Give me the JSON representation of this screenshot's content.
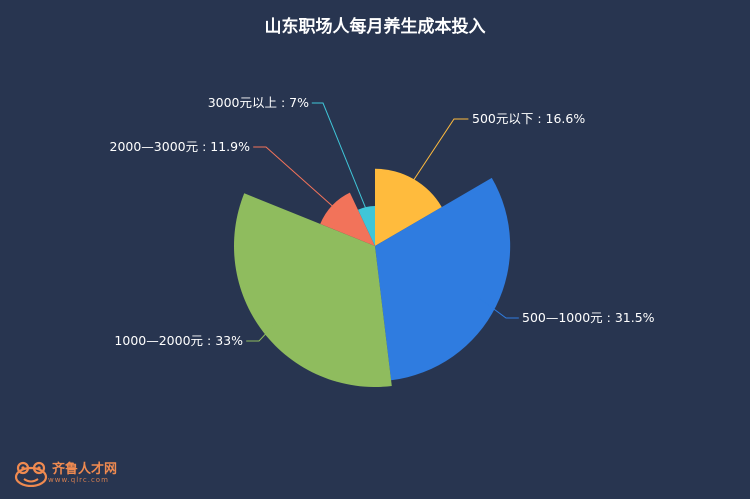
{
  "chart_data": {
    "type": "pie",
    "variant": "rose",
    "title": "山东职场人每月养生成本投入",
    "slices": [
      {
        "name": "500元以下",
        "value": 16.6,
        "label": "500元以下 : 16.6%",
        "color": "#ffbb3d"
      },
      {
        "name": "500—1000元",
        "value": 31.5,
        "label": "500—1000元 : 31.5%",
        "color": "#2f7ce0"
      },
      {
        "name": "1000—2000元",
        "value": 33,
        "label": "1000—2000元 : 33%",
        "color": "#8fbc5e"
      },
      {
        "name": "2000—3000元",
        "value": 11.9,
        "label": "2000—3000元 : 11.9%",
        "color": "#f2735a"
      },
      {
        "name": "3000元以上",
        "value": 7,
        "label": "3000元以上 : 7%",
        "color": "#3fc6d8"
      }
    ]
  },
  "logo": {
    "text": "齐鲁人才网",
    "sub": "www.qlrc.com"
  }
}
